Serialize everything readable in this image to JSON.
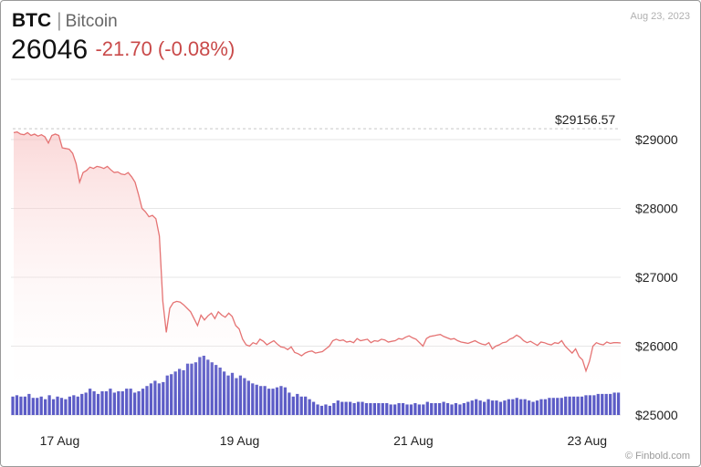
{
  "header": {
    "symbol": "BTC",
    "separator": "|",
    "name": "Bitcoin",
    "price": "26046",
    "change": "-21.70 (-0.08%)",
    "date": "Aug 23, 2023"
  },
  "footer": {
    "credit": "© Finbold.com"
  },
  "colors": {
    "line": "#e57373",
    "fill": "#f9c9c9",
    "volume": "#5b5bc6",
    "grid": "#e6e6e6",
    "change": "#c94a4a"
  },
  "chart_data": {
    "type": "line",
    "series": [
      {
        "values": [
          29100,
          29110,
          29080,
          29070,
          29100,
          29060,
          29080,
          29050,
          29070,
          29040,
          28950,
          29060,
          29080,
          29060,
          28880,
          28870,
          28860,
          28800,
          28650,
          28380,
          28520,
          28550,
          28600,
          28580,
          28610,
          28600,
          28580,
          28610,
          28560,
          28520,
          28530,
          28500,
          28490,
          28520,
          28460,
          28380,
          28200,
          28000,
          27950,
          27880,
          27900,
          27850,
          27600,
          26650,
          26200,
          26550,
          26630,
          26650,
          26640,
          26600,
          26550,
          26500,
          26400,
          26300,
          26450,
          26380,
          26440,
          26480,
          26400,
          26500,
          26450,
          26420,
          26480,
          26430,
          26300,
          26250,
          26100,
          26020,
          26000,
          26050,
          26030,
          26100,
          26070,
          26020,
          26050,
          26080,
          26030,
          25990,
          25980,
          25950,
          25990,
          25910,
          25890,
          25860,
          25900,
          25920,
          25930,
          25900,
          25910,
          25920,
          25960,
          26000,
          26080,
          26100,
          26080,
          26090,
          26060,
          26070,
          26050,
          26110,
          26080,
          26090,
          26100,
          26050,
          26080,
          26070,
          26100,
          26090,
          26060,
          26070,
          26080,
          26110,
          26100,
          26130,
          26150,
          26120,
          26100,
          26050,
          26000,
          26110,
          26140,
          26150,
          26160,
          26170,
          26140,
          26120,
          26100,
          26110,
          26080,
          26060,
          26050,
          26040,
          26060,
          26080,
          26050,
          26030,
          26020,
          26050,
          25960,
          26000,
          26020,
          26050,
          26060,
          26100,
          26120,
          26160,
          26130,
          26080,
          26050,
          26070,
          26040,
          26010,
          26060,
          26050,
          26030,
          26020,
          26050,
          26040,
          26080,
          26000,
          25950,
          25900,
          25960,
          25850,
          25800,
          25640,
          25780,
          26000,
          26050,
          26030,
          26020,
          26060,
          26040,
          26050,
          26050,
          26046
        ]
      }
    ],
    "volume": [
      14,
      15,
      14,
      14,
      16,
      13,
      13,
      14,
      12,
      15,
      12,
      14,
      13,
      12,
      14,
      15,
      14,
      16,
      17,
      20,
      18,
      16,
      18,
      18,
      20,
      17,
      18,
      18,
      20,
      20,
      17,
      18,
      20,
      22,
      24,
      26,
      24,
      25,
      30,
      31,
      33,
      35,
      34,
      39,
      39,
      40,
      44,
      45,
      42,
      40,
      38,
      36,
      33,
      30,
      32,
      28,
      30,
      28,
      26,
      24,
      23,
      22,
      22,
      20,
      20,
      21,
      22,
      21,
      17,
      14,
      16,
      14,
      14,
      12,
      10,
      8,
      7,
      8,
      7,
      9,
      11,
      10,
      10,
      10,
      9,
      10,
      10,
      9,
      9,
      9,
      9,
      9,
      9,
      8,
      8,
      9,
      9,
      8,
      8,
      9,
      8,
      8,
      10,
      9,
      9,
      9,
      10,
      9,
      8,
      9,
      8,
      9,
      10,
      11,
      12,
      11,
      10,
      12,
      11,
      11,
      10,
      11,
      12,
      12,
      13,
      12,
      12,
      11,
      10,
      11,
      12,
      12,
      13,
      13,
      13,
      13,
      14,
      14,
      14,
      14,
      14,
      15,
      15,
      15,
      16,
      16,
      16,
      16,
      17,
      17
    ],
    "ylim": [
      25000,
      29500
    ],
    "yticks": [
      {
        "value": 29000,
        "label": "$29000"
      },
      {
        "value": 28000,
        "label": "$28000"
      },
      {
        "value": 27000,
        "label": "$27000"
      },
      {
        "value": 26000,
        "label": "$26000"
      },
      {
        "value": 25000,
        "label": "$25000"
      }
    ],
    "xticks": [
      {
        "value": 0.08,
        "label": "17 Aug"
      },
      {
        "value": 0.375,
        "label": "19 Aug"
      },
      {
        "value": 0.66,
        "label": "21 Aug"
      },
      {
        "value": 0.945,
        "label": "23 Aug"
      }
    ],
    "reference": {
      "value": 29156.57,
      "label": "$29156.57"
    }
  }
}
